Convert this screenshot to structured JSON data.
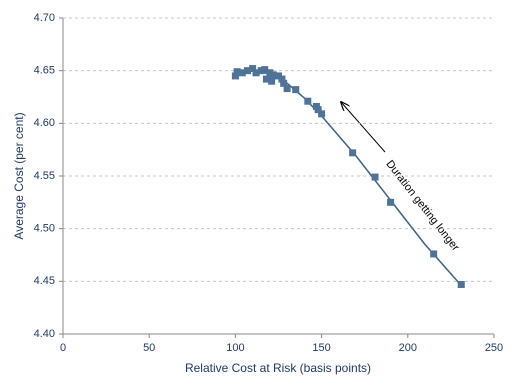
{
  "chart_data": {
    "type": "scatter",
    "xlabel": "Relative  Cost at Risk (basis points)",
    "ylabel": "Average  Cost (per cent)",
    "annotation": "Duration getting longer",
    "series": [
      {
        "color": "#4f7398",
        "x": [
          100,
          101,
          104,
          107,
          110,
          112,
          115,
          117,
          118,
          120,
          121,
          122,
          125,
          127,
          128,
          130,
          135,
          142,
          147,
          148,
          150,
          168,
          181,
          190,
          215,
          231
        ],
        "values": [
          4.645,
          4.649,
          4.648,
          4.65,
          4.652,
          4.648,
          4.65,
          4.651,
          4.642,
          4.648,
          4.64,
          4.646,
          4.645,
          4.642,
          4.638,
          4.633,
          4.632,
          4.621,
          4.616,
          4.613,
          4.609,
          4.572,
          4.549,
          4.525,
          4.476,
          4.447
        ]
      }
    ],
    "trend": {
      "color": "#3e6285",
      "x": [
        100,
        110,
        120,
        130,
        140,
        150,
        170,
        190,
        210,
        231
      ],
      "values": [
        4.646,
        4.65,
        4.647,
        4.638,
        4.624,
        4.607,
        4.569,
        4.527,
        4.485,
        4.446
      ]
    },
    "xlim": [
      0,
      250
    ],
    "xticks": [
      0,
      50,
      100,
      150,
      200,
      250
    ],
    "ylim": [
      4.4,
      4.7
    ],
    "yticks": [
      {
        "value": 4.4,
        "label": "4.40"
      },
      {
        "value": 4.45,
        "label": "4.45"
      },
      {
        "value": 4.5,
        "label": "4.50"
      },
      {
        "value": 4.55,
        "label": "4.55"
      },
      {
        "value": 4.6,
        "label": "4.60"
      },
      {
        "value": 4.65,
        "label": "4.65"
      },
      {
        "value": 4.7,
        "label": "4.70"
      }
    ],
    "grid": true
  }
}
